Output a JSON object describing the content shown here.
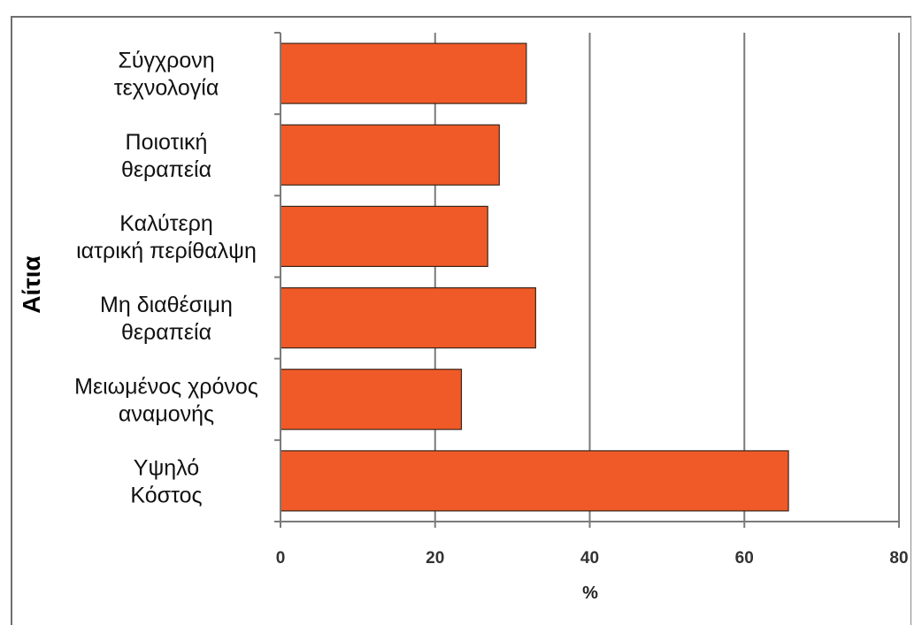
{
  "chart_data": {
    "type": "bar",
    "orientation": "horizontal",
    "title": "",
    "xlabel": "%",
    "ylabel": "Αίτια",
    "xlim": [
      0,
      80
    ],
    "xticks": [
      0,
      20,
      40,
      60,
      80
    ],
    "grid": "vertical",
    "legend": "none",
    "bar_color": "#f05a28",
    "categories": [
      [
        "Σύγχρονη",
        "τεχνολογία"
      ],
      [
        "Ποιοτική",
        "θεραπεία"
      ],
      [
        "Καλύτερη",
        "ιατρική περίθαλψη"
      ],
      [
        "Μη διαθέσιμη",
        "θεραπεία"
      ],
      [
        "Μειωμένος χρόνος",
        "αναμονής"
      ],
      [
        "Υψηλό",
        "Κόστος"
      ]
    ],
    "values": [
      31.8,
      28.3,
      26.8,
      33.0,
      23.4,
      65.7
    ]
  }
}
